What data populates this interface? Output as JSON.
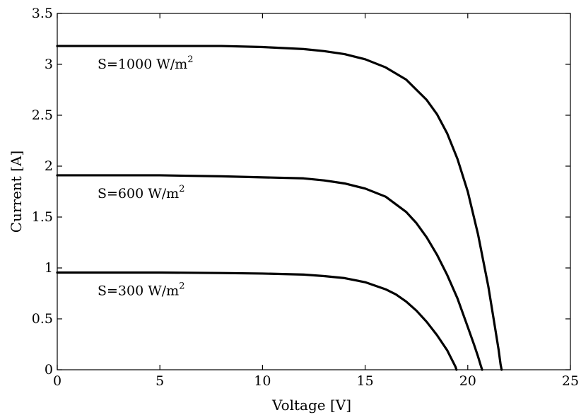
{
  "chart_data": {
    "type": "line",
    "xlabel": "Voltage [V]",
    "ylabel": "Current [A]",
    "xlim": [
      0,
      25
    ],
    "ylim": [
      0,
      3.5
    ],
    "xticks": [
      0,
      5,
      10,
      15,
      20,
      25
    ],
    "yticks": [
      0,
      0.5,
      1,
      1.5,
      2,
      2.5,
      3,
      3.5
    ],
    "xtick_labels": [
      "0",
      "5",
      "10",
      "15",
      "20",
      "25"
    ],
    "ytick_labels": [
      "0",
      "0.5",
      "1",
      "1.5",
      "2",
      "2.5",
      "3",
      "3.5"
    ],
    "grid": false,
    "legend": "none",
    "series": [
      {
        "label_base": "S=1000 W/m",
        "label_sup": "2",
        "x": [
          0,
          5,
          8,
          10,
          12,
          13,
          14,
          15,
          16,
          17,
          18,
          18.5,
          19,
          19.5,
          20,
          20.5,
          21,
          21.3,
          21.5,
          21.6,
          21.65
        ],
        "y": [
          3.18,
          3.18,
          3.18,
          3.17,
          3.15,
          3.13,
          3.1,
          3.05,
          2.97,
          2.85,
          2.65,
          2.51,
          2.32,
          2.07,
          1.75,
          1.33,
          0.82,
          0.45,
          0.2,
          0.05,
          0
        ]
      },
      {
        "label_base": "S=600 W/m",
        "label_sup": "2",
        "x": [
          0,
          5,
          8,
          10,
          12,
          13,
          14,
          15,
          16,
          17,
          17.5,
          18,
          18.5,
          19,
          19.5,
          20,
          20.3,
          20.5,
          20.65,
          20.7
        ],
        "y": [
          1.91,
          1.91,
          1.9,
          1.89,
          1.88,
          1.86,
          1.83,
          1.78,
          1.7,
          1.55,
          1.44,
          1.3,
          1.13,
          0.93,
          0.7,
          0.42,
          0.25,
          0.13,
          0.03,
          0
        ]
      },
      {
        "label_base": "S=300 W/m",
        "label_sup": "2",
        "x": [
          0,
          5,
          8,
          10,
          12,
          13,
          14,
          15,
          16,
          16.5,
          17,
          17.5,
          18,
          18.5,
          19,
          19.2,
          19.4,
          19.45
        ],
        "y": [
          0.955,
          0.955,
          0.95,
          0.945,
          0.935,
          0.92,
          0.9,
          0.86,
          0.79,
          0.74,
          0.67,
          0.58,
          0.47,
          0.34,
          0.19,
          0.11,
          0.03,
          0
        ]
      }
    ]
  }
}
